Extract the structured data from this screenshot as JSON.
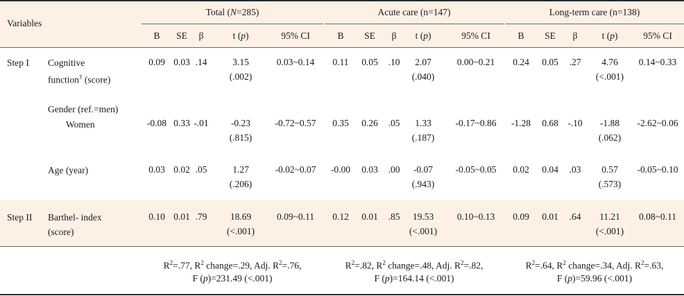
{
  "header": {
    "variables": "Variables",
    "groups": [
      "Total (N=285)",
      "Acute care (n=147)",
      "Long-term care (n=138)"
    ],
    "cols": [
      "B",
      "SE",
      "β",
      "t (p)",
      "95% CI"
    ]
  },
  "rows": [
    {
      "step": "Step I",
      "label_lines": [
        "Cognitive",
        "function† (score)"
      ],
      "groups": [
        {
          "B": "0.09",
          "SE": "0.03",
          "beta": ".14",
          "t": "3.15",
          "p": "(.002)",
          "ci": "0.03~0.14"
        },
        {
          "B": "0.11",
          "SE": "0.05",
          "beta": ".10",
          "t": "2.07",
          "p": "(.040)",
          "ci": "0.00~0.21"
        },
        {
          "B": "0.24",
          "SE": "0.05",
          "beta": ".27",
          "t": "4.76",
          "p": "(<.001)",
          "ci": "0.14~0.33"
        }
      ]
    },
    {
      "step": "",
      "label_lines": [
        "Gender (ref.=men)",
        "Women"
      ],
      "groups": [
        {
          "B": "-0.08",
          "SE": "0.33",
          "beta": "-.01",
          "t": "-0.23",
          "p": "(.815)",
          "ci": "-0.72~0.57"
        },
        {
          "B": "0.35",
          "SE": "0.26",
          "beta": ".05",
          "t": "1.33",
          "p": "(.187)",
          "ci": "-0.17~0.86"
        },
        {
          "B": "-1.28",
          "SE": "0.68",
          "beta": "-.10",
          "t": "-1.88",
          "p": "(.062)",
          "ci": "-2.62~0.06"
        }
      ]
    },
    {
      "step": "",
      "label_lines": [
        "Age (year)"
      ],
      "groups": [
        {
          "B": "0.03",
          "SE": "0.02",
          "beta": ".05",
          "t": "1.27",
          "p": "(.206)",
          "ci": "-0.02~0.07"
        },
        {
          "B": "-0.00",
          "SE": "0.03",
          "beta": ".00",
          "t": "-0.07",
          "p": "(.943)",
          "ci": "-0.05~0.05"
        },
        {
          "B": "0.02",
          "SE": "0.04",
          "beta": ".03",
          "t": "0.57",
          "p": "(.573)",
          "ci": "-0.05~0.10"
        }
      ]
    },
    {
      "step": "Step II",
      "label_lines": [
        "Barthel- index",
        "(score)"
      ],
      "groups": [
        {
          "B": "0.10",
          "SE": "0.01",
          "beta": ".79",
          "t": "18.69",
          "p": "(<.001)",
          "ci": "0.09~0.11"
        },
        {
          "B": "0.12",
          "SE": "0.01",
          "beta": ".85",
          "t": "19.53",
          "p": "(<.001)",
          "ci": "0.10~0.13"
        },
        {
          "B": "0.09",
          "SE": "0.01",
          "beta": ".64",
          "t": "11.21",
          "p": "(<.001)",
          "ci": "0.08~0.11"
        }
      ]
    }
  ],
  "model_stats": [
    [
      "R²=.77, R² change=.29, Adj. R²=.76,",
      "F (p)=231.49 (<.001)"
    ],
    [
      "R²=.82, R² change=.48, Adj. R²=.82,",
      "F (p)=164.14 (<.001)"
    ],
    [
      "R²=.64, R² change=.34, Adj. R²=.63,",
      "F (p)=59.96 (<.001)"
    ]
  ]
}
